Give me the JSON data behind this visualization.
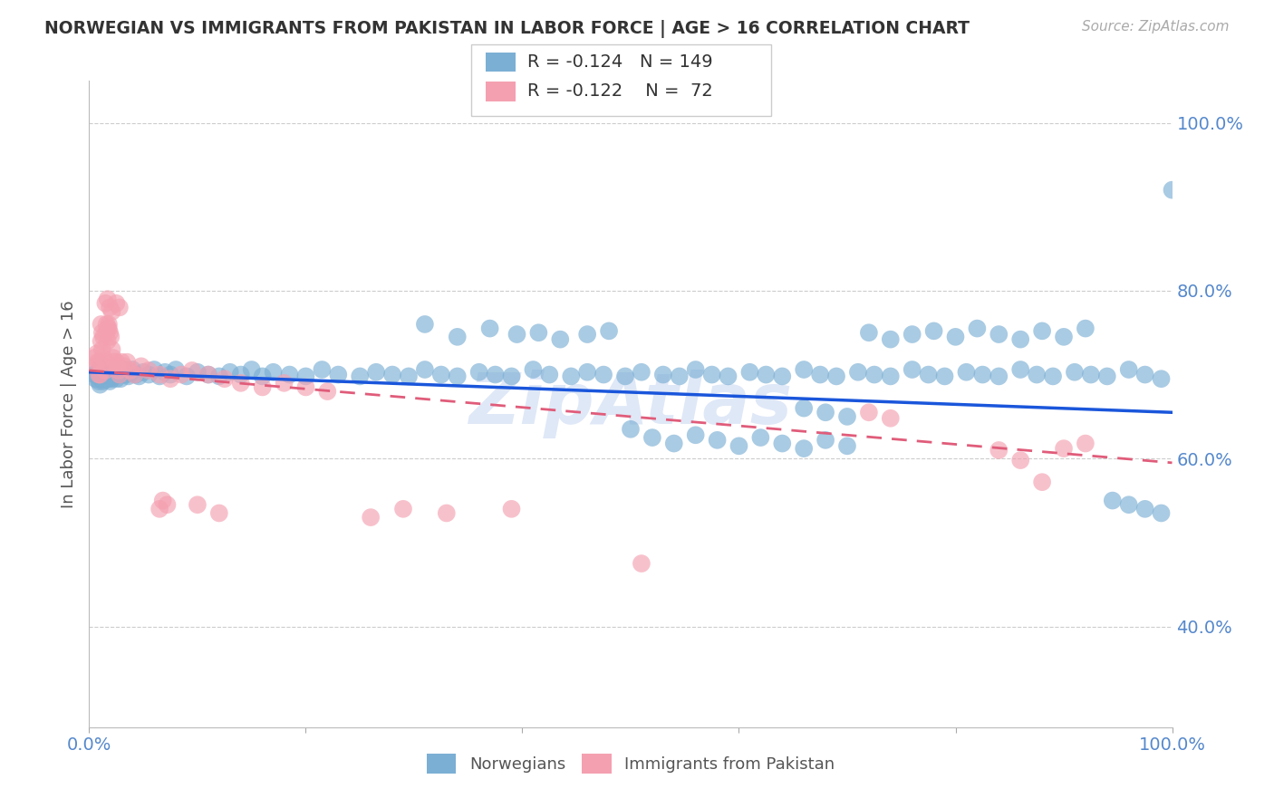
{
  "title": "NORWEGIAN VS IMMIGRANTS FROM PAKISTAN IN LABOR FORCE | AGE > 16 CORRELATION CHART",
  "source": "Source: ZipAtlas.com",
  "ylabel": "In Labor Force | Age > 16",
  "xlim": [
    0.0,
    1.0
  ],
  "ylim": [
    0.28,
    1.05
  ],
  "yticks": [
    0.4,
    0.6,
    0.8,
    1.0
  ],
  "ytick_labels": [
    "40.0%",
    "60.0%",
    "80.0%",
    "100.0%"
  ],
  "legend_r_norwegian": "-0.124",
  "legend_n_norwegian": "149",
  "legend_r_pakistan": "-0.122",
  "legend_n_pakistan": "72",
  "norwegian_color": "#7BAFD4",
  "pakistan_color": "#F4A0B0",
  "trendline_norwegian_color": "#1a56db",
  "trendline_pakistan_color": "#e05c7a",
  "watermark": "ZipAtlas",
  "axis_label_color": "#5588cc",
  "title_color": "#333333",
  "background_color": "#ffffff",
  "norwegians_x": [
    0.005,
    0.006,
    0.007,
    0.008,
    0.009,
    0.01,
    0.01,
    0.011,
    0.011,
    0.012,
    0.012,
    0.013,
    0.013,
    0.014,
    0.014,
    0.015,
    0.015,
    0.016,
    0.016,
    0.017,
    0.017,
    0.018,
    0.018,
    0.019,
    0.019,
    0.02,
    0.02,
    0.021,
    0.021,
    0.022,
    0.022,
    0.023,
    0.024,
    0.025,
    0.026,
    0.027,
    0.028,
    0.029,
    0.03,
    0.032,
    0.034,
    0.036,
    0.038,
    0.04,
    0.043,
    0.046,
    0.05,
    0.055,
    0.06,
    0.065,
    0.07,
    0.075,
    0.08,
    0.09,
    0.1,
    0.11,
    0.12,
    0.13,
    0.14,
    0.15,
    0.16,
    0.17,
    0.185,
    0.2,
    0.215,
    0.23,
    0.25,
    0.265,
    0.28,
    0.295,
    0.31,
    0.325,
    0.34,
    0.36,
    0.375,
    0.39,
    0.41,
    0.425,
    0.445,
    0.46,
    0.475,
    0.495,
    0.51,
    0.53,
    0.545,
    0.56,
    0.575,
    0.59,
    0.61,
    0.625,
    0.64,
    0.66,
    0.675,
    0.69,
    0.71,
    0.725,
    0.74,
    0.76,
    0.775,
    0.79,
    0.81,
    0.825,
    0.84,
    0.86,
    0.875,
    0.89,
    0.91,
    0.925,
    0.94,
    0.96,
    0.975,
    0.99,
    0.31,
    0.34,
    0.37,
    0.395,
    0.415,
    0.435,
    0.46,
    0.48,
    0.5,
    0.52,
    0.54,
    0.56,
    0.58,
    0.6,
    0.62,
    0.64,
    0.66,
    0.68,
    0.7,
    0.72,
    0.74,
    0.76,
    0.78,
    0.8,
    0.82,
    0.84,
    0.86,
    0.88,
    0.9,
    0.92,
    0.945,
    0.96,
    0.975,
    0.99,
    0.66,
    0.68,
    0.7,
    1.0
  ],
  "norwegians_y": [
    0.7,
    0.695,
    0.703,
    0.698,
    0.692,
    0.706,
    0.688,
    0.71,
    0.695,
    0.7,
    0.698,
    0.705,
    0.692,
    0.708,
    0.695,
    0.7,
    0.702,
    0.706,
    0.695,
    0.7,
    0.698,
    0.703,
    0.695,
    0.7,
    0.692,
    0.706,
    0.698,
    0.702,
    0.695,
    0.7,
    0.698,
    0.703,
    0.7,
    0.695,
    0.702,
    0.706,
    0.7,
    0.695,
    0.703,
    0.706,
    0.7,
    0.698,
    0.702,
    0.706,
    0.7,
    0.698,
    0.703,
    0.7,
    0.706,
    0.698,
    0.703,
    0.7,
    0.706,
    0.698,
    0.703,
    0.7,
    0.698,
    0.703,
    0.7,
    0.706,
    0.698,
    0.703,
    0.7,
    0.698,
    0.706,
    0.7,
    0.698,
    0.703,
    0.7,
    0.698,
    0.706,
    0.7,
    0.698,
    0.703,
    0.7,
    0.698,
    0.706,
    0.7,
    0.698,
    0.703,
    0.7,
    0.698,
    0.703,
    0.7,
    0.698,
    0.706,
    0.7,
    0.698,
    0.703,
    0.7,
    0.698,
    0.706,
    0.7,
    0.698,
    0.703,
    0.7,
    0.698,
    0.706,
    0.7,
    0.698,
    0.703,
    0.7,
    0.698,
    0.706,
    0.7,
    0.698,
    0.703,
    0.7,
    0.698,
    0.706,
    0.7,
    0.695,
    0.76,
    0.745,
    0.755,
    0.748,
    0.75,
    0.742,
    0.748,
    0.752,
    0.635,
    0.625,
    0.618,
    0.628,
    0.622,
    0.615,
    0.625,
    0.618,
    0.612,
    0.622,
    0.615,
    0.75,
    0.742,
    0.748,
    0.752,
    0.745,
    0.755,
    0.748,
    0.742,
    0.752,
    0.745,
    0.755,
    0.55,
    0.545,
    0.54,
    0.535,
    0.66,
    0.655,
    0.65,
    0.92
  ],
  "pakistan_x": [
    0.005,
    0.006,
    0.007,
    0.008,
    0.009,
    0.01,
    0.01,
    0.011,
    0.011,
    0.012,
    0.012,
    0.013,
    0.013,
    0.014,
    0.015,
    0.016,
    0.016,
    0.017,
    0.017,
    0.018,
    0.018,
    0.019,
    0.02,
    0.021,
    0.022,
    0.023,
    0.024,
    0.025,
    0.026,
    0.027,
    0.028,
    0.03,
    0.032,
    0.035,
    0.038,
    0.042,
    0.048,
    0.055,
    0.065,
    0.075,
    0.085,
    0.095,
    0.11,
    0.125,
    0.14,
    0.16,
    0.18,
    0.2,
    0.22,
    0.26,
    0.29,
    0.33,
    0.39,
    0.51,
    0.72,
    0.74,
    0.84,
    0.86,
    0.88,
    0.9,
    0.92,
    0.1,
    0.12,
    0.065,
    0.068,
    0.072,
    0.015,
    0.017,
    0.019,
    0.021,
    0.025,
    0.028
  ],
  "pakistan_y": [
    0.72,
    0.71,
    0.725,
    0.715,
    0.7,
    0.715,
    0.7,
    0.74,
    0.76,
    0.75,
    0.73,
    0.72,
    0.745,
    0.71,
    0.705,
    0.75,
    0.76,
    0.755,
    0.74,
    0.76,
    0.755,
    0.75,
    0.745,
    0.73,
    0.72,
    0.715,
    0.71,
    0.715,
    0.71,
    0.705,
    0.7,
    0.715,
    0.71,
    0.715,
    0.705,
    0.7,
    0.71,
    0.705,
    0.7,
    0.695,
    0.7,
    0.705,
    0.7,
    0.695,
    0.69,
    0.685,
    0.69,
    0.685,
    0.68,
    0.53,
    0.54,
    0.535,
    0.54,
    0.475,
    0.655,
    0.648,
    0.61,
    0.598,
    0.572,
    0.612,
    0.618,
    0.545,
    0.535,
    0.54,
    0.55,
    0.545,
    0.785,
    0.79,
    0.78,
    0.775,
    0.785,
    0.78
  ]
}
